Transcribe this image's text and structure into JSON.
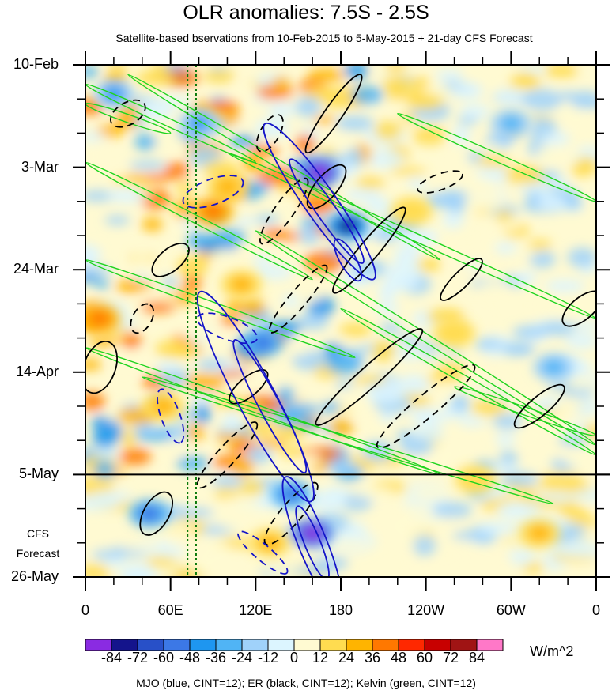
{
  "title": "OLR anomalies: 7.5S - 2.5S",
  "subtitle": "Satellite-based bservations from 10-Feb-2015 to 5-May-2015 + 21-day CFS Forecast",
  "forecast_label_line1": "CFS",
  "forecast_label_line2": "Forecast",
  "footer": "MJO (blue, CINT=12); ER (black, CINT=12); Kelvin (green, CINT=12)",
  "colorbar_units": "W/m^2",
  "colors": {
    "mjo_contour": "#1414c8",
    "er_contour": "#000000",
    "kelvin_contour": "#1fd41f",
    "reference_line": "#0b7a0b"
  },
  "chart_data": {
    "type": "heatmap",
    "title": "OLR anomalies: 7.5S - 2.5S",
    "xlabel": "",
    "ylabel": "",
    "x_tick_labels": [
      "0",
      "60E",
      "120E",
      "180",
      "120W",
      "60W",
      "0"
    ],
    "x_tick_lon": [
      0,
      60,
      120,
      180,
      240,
      300,
      360
    ],
    "xlim": [
      0,
      360
    ],
    "y_tick_labels": [
      "10-Feb",
      "3-Mar",
      "24-Mar",
      "14-Apr",
      "5-May",
      "26-May"
    ],
    "y_tick_day": [
      0,
      21,
      42,
      63,
      84,
      105
    ],
    "ylim_days_from_start": [
      0,
      105
    ],
    "forecast_start_label": "5-May",
    "reference_longitudes": [
      72,
      78
    ],
    "colorbar": {
      "levels": [
        -84,
        -72,
        -60,
        -48,
        -36,
        -24,
        -12,
        0,
        12,
        24,
        36,
        48,
        60,
        72,
        84
      ],
      "level_labels": [
        "-84",
        "-72",
        "-60",
        "-48",
        "-36",
        "-24",
        "-12",
        "0",
        "12",
        "24",
        "36",
        "48",
        "60",
        "72",
        "84"
      ],
      "colors": [
        "#8a2be2",
        "#14148c",
        "#2850c8",
        "#3c78e6",
        "#1e96f0",
        "#50b4f5",
        "#a0d2fa",
        "#dcf5ff",
        "#fffad2",
        "#ffdc50",
        "#ffb400",
        "#ff7800",
        "#ff2800",
        "#c80000",
        "#a01414",
        "#ff78c8"
      ]
    },
    "anomaly_centers": [
      {
        "lon": 165,
        "day": 22,
        "value": -84
      },
      {
        "lon": 185,
        "day": 33,
        "value": -72
      },
      {
        "lon": 160,
        "day": 96,
        "value": -84
      },
      {
        "lon": 145,
        "day": 88,
        "value": -48
      },
      {
        "lon": 125,
        "day": 57,
        "value": -48
      },
      {
        "lon": 45,
        "day": 92,
        "value": -48
      },
      {
        "lon": 80,
        "day": 12,
        "value": -36
      },
      {
        "lon": 20,
        "day": 6,
        "value": -36
      },
      {
        "lon": 300,
        "day": 12,
        "value": -24
      },
      {
        "lon": 330,
        "day": 62,
        "value": -24
      },
      {
        "lon": 90,
        "day": 30,
        "value": 48
      },
      {
        "lon": 100,
        "day": 25,
        "value": 36
      },
      {
        "lon": 130,
        "day": 98,
        "value": 36
      },
      {
        "lon": 10,
        "day": 52,
        "value": 48
      },
      {
        "lon": 320,
        "day": 96,
        "value": 36
      },
      {
        "lon": 230,
        "day": 30,
        "value": 24
      },
      {
        "lon": 260,
        "day": 55,
        "value": 24
      },
      {
        "lon": 275,
        "day": 85,
        "value": 24
      },
      {
        "lon": 110,
        "day": 45,
        "value": 36
      },
      {
        "lon": 55,
        "day": 70,
        "value": 36
      }
    ],
    "series": [
      {
        "name": "MJO",
        "contour_interval": 12
      },
      {
        "name": "ER",
        "contour_interval": 12
      },
      {
        "name": "Kelvin",
        "contour_interval": 12
      }
    ]
  }
}
